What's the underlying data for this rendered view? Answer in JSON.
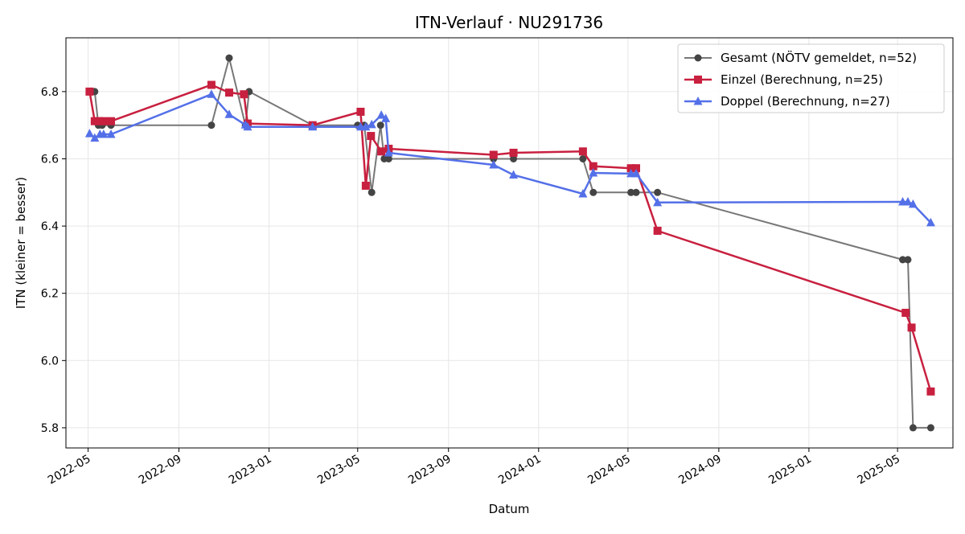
{
  "chart_data": {
    "type": "line",
    "title": "ITN-Verlauf · NU291736",
    "xlabel": "Datum",
    "ylabel": "ITN  (kleiner = besser)",
    "x_axis_type": "date",
    "xlim": [
      "2022-04-01",
      "2025-07-15"
    ],
    "ylim": [
      5.74,
      6.96
    ],
    "x_ticks": [
      "2022-05-01",
      "2022-09-01",
      "2023-01-01",
      "2023-05-01",
      "2023-09-01",
      "2024-01-01",
      "2024-05-01",
      "2024-09-01",
      "2025-01-01",
      "2025-05-01"
    ],
    "x_tick_labels": [
      "2022-05",
      "2022-09",
      "2023-01",
      "2023-05",
      "2023-09",
      "2024-01",
      "2024-05",
      "2024-09",
      "2025-01",
      "2025-05"
    ],
    "y_ticks": [
      5.8,
      6.0,
      6.2,
      6.4,
      6.6,
      6.8
    ],
    "y_tick_labels": [
      "5.8",
      "6.0",
      "6.2",
      "6.4",
      "6.6",
      "6.8"
    ],
    "grid": true,
    "legend_position": "top-right",
    "series": [
      {
        "name": "Gesamt (NÖTV gemeldet, n=52)",
        "color": "#777777",
        "marker_color": "#444444",
        "marker": "circle",
        "points": [
          [
            "2022-05-03",
            6.8
          ],
          [
            "2022-05-10",
            6.8
          ],
          [
            "2022-05-15",
            6.7
          ],
          [
            "2022-05-20",
            6.7
          ],
          [
            "2022-06-01",
            6.7
          ],
          [
            "2022-10-15",
            6.7
          ],
          [
            "2022-11-08",
            6.9
          ],
          [
            "2022-11-30",
            6.7
          ],
          [
            "2022-12-05",
            6.8
          ],
          [
            "2023-03-01",
            6.7
          ],
          [
            "2023-05-01",
            6.7
          ],
          [
            "2023-05-10",
            6.7
          ],
          [
            "2023-05-20",
            6.5
          ],
          [
            "2023-06-01",
            6.7
          ],
          [
            "2023-06-06",
            6.6
          ],
          [
            "2023-06-12",
            6.6
          ],
          [
            "2023-11-01",
            6.6
          ],
          [
            "2023-11-28",
            6.6
          ],
          [
            "2024-03-01",
            6.6
          ],
          [
            "2024-03-15",
            6.5
          ],
          [
            "2024-05-05",
            6.5
          ],
          [
            "2024-05-12",
            6.5
          ],
          [
            "2024-06-10",
            6.5
          ],
          [
            "2025-05-08",
            6.3
          ],
          [
            "2025-05-15",
            6.3
          ],
          [
            "2025-05-22",
            5.8
          ],
          [
            "2025-06-15",
            5.8
          ]
        ]
      },
      {
        "name": "Einzel (Berechnung, n=25)",
        "color": "#c8203f",
        "marker_color": "#c8203f",
        "marker": "square",
        "points": [
          [
            "2022-05-03",
            6.8
          ],
          [
            "2022-05-10",
            6.712
          ],
          [
            "2022-05-16",
            6.712
          ],
          [
            "2022-05-22",
            6.712
          ],
          [
            "2022-06-01",
            6.712
          ],
          [
            "2022-10-15",
            6.82
          ],
          [
            "2022-11-08",
            6.797
          ],
          [
            "2022-11-28",
            6.792
          ],
          [
            "2022-12-03",
            6.705
          ],
          [
            "2023-03-01",
            6.7
          ],
          [
            "2023-05-05",
            6.74
          ],
          [
            "2023-05-12",
            6.52
          ],
          [
            "2023-05-19",
            6.668
          ],
          [
            "2023-06-02",
            6.622
          ],
          [
            "2023-06-12",
            6.63
          ],
          [
            "2023-11-01",
            6.612
          ],
          [
            "2023-11-28",
            6.618
          ],
          [
            "2024-03-01",
            6.622
          ],
          [
            "2024-03-15",
            6.578
          ],
          [
            "2024-05-05",
            6.572
          ],
          [
            "2024-05-12",
            6.572
          ],
          [
            "2024-06-10",
            6.386
          ],
          [
            "2025-05-12",
            6.142
          ],
          [
            "2025-05-20",
            6.098
          ],
          [
            "2025-06-15",
            5.908
          ]
        ]
      },
      {
        "name": "Doppel (Berechnung, n=27)",
        "color": "#5470e8",
        "marker_color": "#5470e8",
        "marker": "triangle",
        "points": [
          [
            "2022-05-03",
            6.675
          ],
          [
            "2022-05-10",
            6.662
          ],
          [
            "2022-05-17",
            6.673
          ],
          [
            "2022-05-22",
            6.673
          ],
          [
            "2022-06-01",
            6.673
          ],
          [
            "2022-10-15",
            6.792
          ],
          [
            "2022-11-08",
            6.732
          ],
          [
            "2022-11-30",
            6.701
          ],
          [
            "2022-12-03",
            6.695
          ],
          [
            "2023-03-01",
            6.695
          ],
          [
            "2023-05-05",
            6.695
          ],
          [
            "2023-05-12",
            6.695
          ],
          [
            "2023-05-20",
            6.702
          ],
          [
            "2023-06-02",
            6.73
          ],
          [
            "2023-06-08",
            6.72
          ],
          [
            "2023-06-12",
            6.618
          ],
          [
            "2023-11-01",
            6.582
          ],
          [
            "2023-11-28",
            6.552
          ],
          [
            "2024-03-01",
            6.496
          ],
          [
            "2024-03-15",
            6.558
          ],
          [
            "2024-05-05",
            6.556
          ],
          [
            "2024-05-12",
            6.556
          ],
          [
            "2024-06-10",
            6.47
          ],
          [
            "2025-05-08",
            6.472
          ],
          [
            "2025-05-15",
            6.472
          ],
          [
            "2025-05-22",
            6.465
          ],
          [
            "2025-06-15",
            6.41
          ]
        ]
      }
    ]
  }
}
